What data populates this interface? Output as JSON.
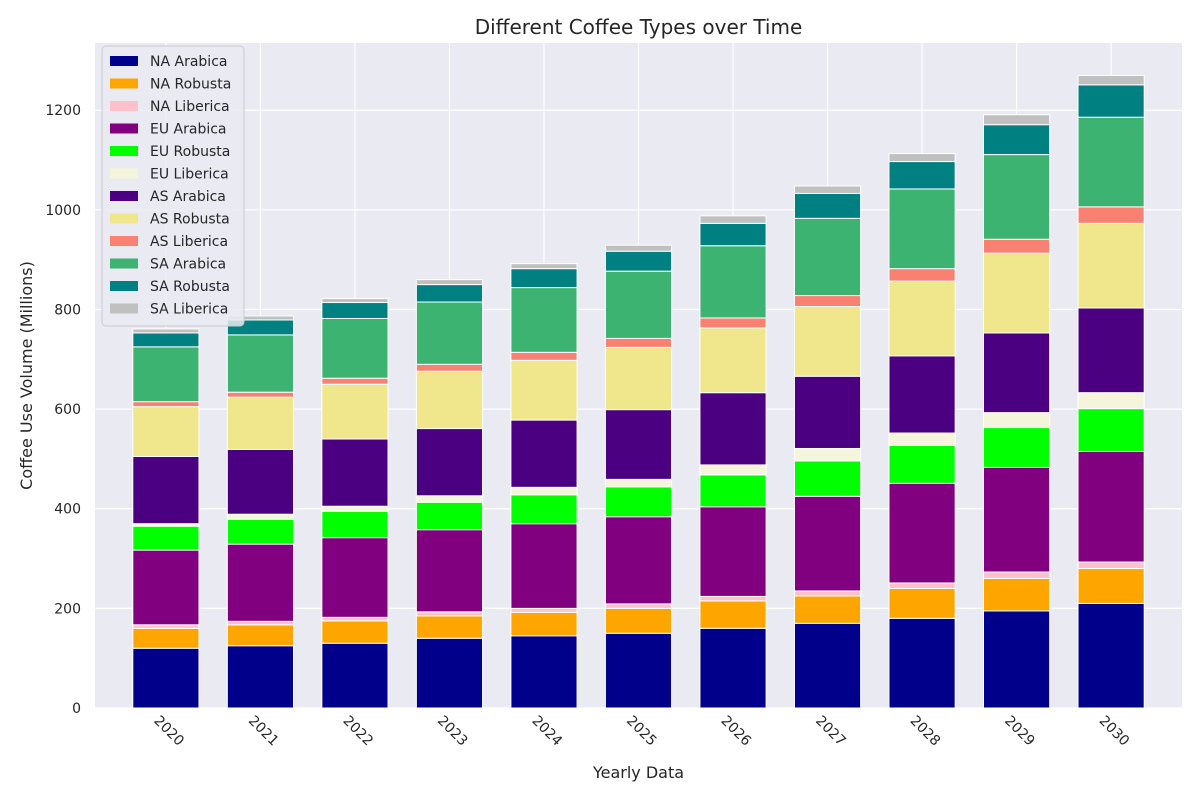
{
  "chart_data": {
    "type": "bar",
    "stacked": true,
    "title": "Different Coffee Types over Time",
    "xlabel": "Yearly Data",
    "ylabel": "Coffee Use Volume (Millions)",
    "ylim": [
      0,
      1335
    ],
    "yticks": [
      0,
      200,
      400,
      600,
      800,
      1000,
      1200
    ],
    "grid": true,
    "legend_position": "top-left",
    "categories": [
      "2020",
      "2021",
      "2022",
      "2023",
      "2024",
      "2025",
      "2026",
      "2027",
      "2028",
      "2029",
      "2030"
    ],
    "series": [
      {
        "name": "NA Arabica",
        "color": "#00008b",
        "values": [
          120,
          125,
          130,
          140,
          145,
          150,
          160,
          170,
          180,
          195,
          210
        ]
      },
      {
        "name": "NA Robusta",
        "color": "#ffa500",
        "values": [
          40,
          42,
          45,
          45,
          47,
          50,
          55,
          55,
          60,
          65,
          70
        ]
      },
      {
        "name": "NA Liberica",
        "color": "#ffc0cb",
        "values": [
          7,
          7,
          7,
          8,
          8,
          9,
          9,
          10,
          11,
          13,
          13
        ]
      },
      {
        "name": "EU Arabica",
        "color": "#800080",
        "values": [
          150,
          155,
          160,
          165,
          170,
          175,
          180,
          190,
          200,
          210,
          222
        ]
      },
      {
        "name": "EU Robusta",
        "color": "#00ff00",
        "values": [
          48,
          50,
          53,
          55,
          58,
          60,
          64,
          71,
          76,
          80,
          86
        ]
      },
      {
        "name": "EU Liberica",
        "color": "#f5f5dc",
        "values": [
          5,
          10,
          10,
          13,
          15,
          15,
          20,
          25,
          25,
          30,
          32
        ]
      },
      {
        "name": "AS Arabica",
        "color": "#4b0082",
        "values": [
          135,
          130,
          135,
          135,
          135,
          140,
          145,
          145,
          155,
          160,
          170
        ]
      },
      {
        "name": "AS Robusta",
        "color": "#f0e68c",
        "values": [
          100,
          105,
          110,
          115,
          120,
          125,
          130,
          140,
          150,
          160,
          170
        ]
      },
      {
        "name": "AS Liberica",
        "color": "#fa8072",
        "values": [
          10,
          10,
          12,
          14,
          16,
          18,
          20,
          22,
          25,
          28,
          33
        ]
      },
      {
        "name": "SA Arabica",
        "color": "#3cb371",
        "values": [
          110,
          115,
          120,
          125,
          130,
          135,
          145,
          155,
          160,
          170,
          180
        ]
      },
      {
        "name": "SA Robusta",
        "color": "#008080",
        "values": [
          28,
          30,
          32,
          35,
          38,
          40,
          45,
          50,
          55,
          60,
          65
        ]
      },
      {
        "name": "SA Liberica",
        "color": "#c0c0c0",
        "values": [
          8,
          8,
          8,
          10,
          10,
          12,
          15,
          15,
          16,
          20,
          19
        ]
      }
    ]
  }
}
